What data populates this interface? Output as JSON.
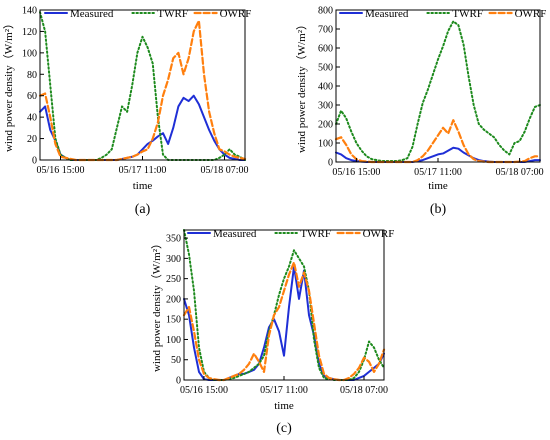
{
  "colors": {
    "measured": "#1f2fd6",
    "twrf": "#1d8a1d",
    "owrf": "#ff7f0e",
    "axis": "#000000"
  },
  "chart_data": [
    {
      "type": "line",
      "panel_label": "(a)",
      "xlabel": "time",
      "ylabel": "wind power density（W/m²）",
      "ylim": [
        0,
        140
      ],
      "yticks": [
        0,
        20,
        40,
        60,
        80,
        100,
        120,
        140
      ],
      "xlim": [
        0,
        40
      ],
      "xticks": [
        {
          "pos": 4,
          "label": "05/16 15:00"
        },
        {
          "pos": 20,
          "label": "05/17 11:00"
        },
        {
          "pos": 36,
          "label": "05/18 07:00"
        }
      ],
      "legend": "top",
      "series": [
        {
          "name": "Measured",
          "style": "solid",
          "values": [
            45,
            50,
            28,
            18,
            5,
            2,
            0,
            0,
            0,
            0,
            0,
            0,
            0,
            0,
            0,
            0,
            1,
            2,
            3,
            5,
            10,
            15,
            18,
            22,
            25,
            15,
            30,
            50,
            58,
            55,
            60,
            52,
            40,
            28,
            18,
            10,
            5,
            2,
            1,
            0,
            0
          ]
        },
        {
          "name": "TWRF",
          "style": "dotted",
          "values": [
            138,
            120,
            70,
            20,
            5,
            2,
            0,
            0,
            0,
            0,
            0,
            0,
            2,
            5,
            10,
            30,
            50,
            45,
            70,
            100,
            115,
            105,
            90,
            40,
            5,
            0,
            0,
            0,
            0,
            0,
            0,
            0,
            0,
            0,
            0,
            2,
            5,
            10,
            5,
            3,
            0
          ]
        },
        {
          "name": "OWRF",
          "style": "dashed",
          "values": [
            60,
            62,
            40,
            15,
            3,
            2,
            1,
            0,
            0,
            0,
            0,
            0,
            0,
            0,
            0,
            0,
            1,
            2,
            3,
            5,
            8,
            10,
            20,
            35,
            60,
            75,
            95,
            100,
            80,
            95,
            120,
            130,
            80,
            45,
            25,
            10,
            8,
            5,
            3,
            2,
            1
          ]
        }
      ]
    },
    {
      "type": "line",
      "panel_label": "(b)",
      "xlabel": "time",
      "ylabel": "wind power density（W/m²）",
      "ylim": [
        0,
        800
      ],
      "yticks": [
        0,
        100,
        200,
        300,
        400,
        500,
        600,
        700,
        800
      ],
      "xlim": [
        0,
        40
      ],
      "xticks": [
        {
          "pos": 4,
          "label": "05/16 15:00"
        },
        {
          "pos": 20,
          "label": "05/17 11:00"
        },
        {
          "pos": 36,
          "label": "05/18 07:00"
        }
      ],
      "legend": "top",
      "series": [
        {
          "name": "Measured",
          "style": "solid",
          "values": [
            50,
            40,
            20,
            10,
            5,
            2,
            0,
            0,
            0,
            0,
            0,
            0,
            0,
            0,
            0,
            0,
            5,
            10,
            20,
            30,
            40,
            45,
            60,
            75,
            70,
            50,
            35,
            20,
            10,
            5,
            2,
            0,
            0,
            0,
            0,
            0,
            0,
            0,
            5,
            10,
            10
          ]
        },
        {
          "name": "TWRF",
          "style": "dotted",
          "values": [
            200,
            270,
            230,
            160,
            100,
            60,
            30,
            15,
            10,
            5,
            5,
            5,
            5,
            10,
            20,
            80,
            200,
            310,
            380,
            460,
            540,
            610,
            690,
            740,
            720,
            620,
            450,
            300,
            200,
            170,
            150,
            130,
            90,
            60,
            40,
            100,
            110,
            160,
            230,
            290,
            300
          ]
        },
        {
          "name": "OWRF",
          "style": "dashed",
          "values": [
            120,
            130,
            90,
            40,
            15,
            5,
            2,
            0,
            0,
            0,
            0,
            0,
            0,
            0,
            0,
            0,
            10,
            30,
            60,
            100,
            140,
            180,
            150,
            220,
            160,
            90,
            40,
            15,
            5,
            2,
            0,
            0,
            0,
            0,
            0,
            0,
            2,
            5,
            20,
            30,
            30
          ]
        }
      ]
    },
    {
      "type": "line",
      "panel_label": "(c)",
      "xlabel": "time",
      "ylabel": "wind power density（W/m²）",
      "ylim": [
        0,
        370
      ],
      "yticks": [
        0,
        50,
        100,
        150,
        200,
        250,
        300,
        350
      ],
      "xlim": [
        0,
        40
      ],
      "xticks": [
        {
          "pos": 4,
          "label": "05/16 15:00"
        },
        {
          "pos": 20,
          "label": "05/17 11:00"
        },
        {
          "pos": 36,
          "label": "05/18 07:00"
        }
      ],
      "legend": "top",
      "series": [
        {
          "name": "Measured",
          "style": "solid",
          "values": [
            200,
            160,
            80,
            20,
            2,
            0,
            0,
            0,
            0,
            5,
            10,
            15,
            15,
            20,
            25,
            40,
            80,
            130,
            150,
            120,
            60,
            180,
            280,
            200,
            270,
            160,
            110,
            40,
            10,
            5,
            2,
            0,
            0,
            0,
            0,
            5,
            10,
            20,
            30,
            40,
            65
          ]
        },
        {
          "name": "TWRF",
          "style": "dotted",
          "values": [
            370,
            310,
            220,
            80,
            20,
            5,
            0,
            0,
            0,
            2,
            5,
            10,
            15,
            20,
            30,
            40,
            60,
            120,
            160,
            210,
            250,
            280,
            320,
            300,
            280,
            220,
            100,
            30,
            5,
            2,
            0,
            0,
            0,
            0,
            5,
            20,
            50,
            95,
            80,
            50,
            30
          ]
        },
        {
          "name": "OWRF",
          "style": "dashed",
          "values": [
            160,
            180,
            120,
            50,
            15,
            5,
            2,
            0,
            0,
            5,
            10,
            15,
            25,
            40,
            65,
            45,
            20,
            110,
            160,
            180,
            220,
            260,
            290,
            230,
            265,
            220,
            140,
            60,
            15,
            5,
            2,
            0,
            0,
            5,
            15,
            30,
            55,
            45,
            20,
            40,
            75
          ]
        }
      ]
    }
  ]
}
